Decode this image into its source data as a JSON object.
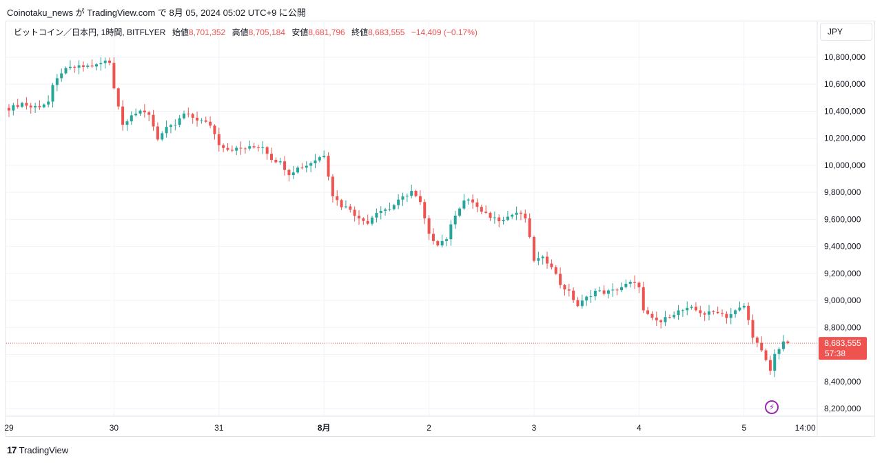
{
  "header": {
    "published_line": "Coinotaku_news が TradingView.com で 8月 05, 2024 05:02 UTC+9 に公開"
  },
  "legend": {
    "symbol": "ビットコイン／日本円, 1時間, BITFLYER",
    "open_label": "始値",
    "open_value": "8,701,352",
    "high_label": "高値",
    "high_value": "8,705,184",
    "low_label": "安値",
    "low_value": "8,681,796",
    "close_label": "終値",
    "close_value": "8,683,555",
    "change": "−14,409 (−0.17%)"
  },
  "currency_button": "JPY",
  "price_tag": {
    "price": "8,683,555",
    "countdown": "57:38"
  },
  "footer": {
    "logo_mark": "17",
    "brand": "TradingView"
  },
  "colors": {
    "up": "#26a69a",
    "down": "#ef5350",
    "grid": "#f0f3fa",
    "axis_text": "#131722",
    "accent_bolt": "#9c27b0"
  },
  "chart_data": {
    "type": "candlestick",
    "ylim": [
      8180000,
      10920000
    ],
    "y_ticks": [
      10800000,
      10600000,
      10400000,
      10200000,
      10000000,
      9800000,
      9600000,
      9400000,
      9200000,
      9000000,
      8800000,
      8600000,
      8400000,
      8200000
    ],
    "y_tick_labels": [
      "10,800,000",
      "10,600,000",
      "10,400,000",
      "10,200,000",
      "10,000,000",
      "9,800,000",
      "9,600,000",
      "9,400,000",
      "9,200,000",
      "9,000,000",
      "8,800,000",
      "8,600,000",
      "8,400,000",
      "8,200,000"
    ],
    "x_tick_labels": [
      {
        "label": "29",
        "hour": 0,
        "bold": false
      },
      {
        "label": "30",
        "hour": 24,
        "bold": false
      },
      {
        "label": "31",
        "hour": 48,
        "bold": false
      },
      {
        "label": "8月",
        "hour": 72,
        "bold": true
      },
      {
        "label": "2",
        "hour": 96,
        "bold": false
      },
      {
        "label": "3",
        "hour": 120,
        "bold": false
      },
      {
        "label": "4",
        "hour": 144,
        "bold": false
      },
      {
        "label": "5",
        "hour": 168,
        "bold": false
      },
      {
        "label": "14:00",
        "hour": 182,
        "bold": false
      }
    ],
    "last_price": 8683555,
    "close_path": [
      [
        0,
        10420000
      ],
      [
        3,
        10460000
      ],
      [
        5,
        10430000
      ],
      [
        7,
        10440000
      ],
      [
        9,
        10470000
      ],
      [
        10,
        10580000
      ],
      [
        12,
        10690000
      ],
      [
        14,
        10720000
      ],
      [
        17,
        10730000
      ],
      [
        20,
        10740000
      ],
      [
        22,
        10770000
      ],
      [
        23,
        10760000
      ],
      [
        24,
        10580000
      ],
      [
        26,
        10300000
      ],
      [
        28,
        10380000
      ],
      [
        30,
        10390000
      ],
      [
        32,
        10380000
      ],
      [
        34,
        10200000
      ],
      [
        36,
        10270000
      ],
      [
        38,
        10300000
      ],
      [
        40,
        10380000
      ],
      [
        43,
        10340000
      ],
      [
        46,
        10300000
      ],
      [
        48,
        10160000
      ],
      [
        50,
        10120000
      ],
      [
        52,
        10120000
      ],
      [
        55,
        10130000
      ],
      [
        58,
        10140000
      ],
      [
        60,
        10050000
      ],
      [
        62,
        10020000
      ],
      [
        64,
        9940000
      ],
      [
        66,
        9980000
      ],
      [
        68,
        10000000
      ],
      [
        70,
        10040000
      ],
      [
        72,
        10080000
      ],
      [
        74,
        9780000
      ],
      [
        76,
        9700000
      ],
      [
        78,
        9680000
      ],
      [
        80,
        9600000
      ],
      [
        82,
        9580000
      ],
      [
        84,
        9660000
      ],
      [
        87,
        9680000
      ],
      [
        90,
        9760000
      ],
      [
        92,
        9810000
      ],
      [
        94,
        9720000
      ],
      [
        96,
        9480000
      ],
      [
        98,
        9420000
      ],
      [
        100,
        9460000
      ],
      [
        102,
        9640000
      ],
      [
        104,
        9740000
      ],
      [
        106,
        9730000
      ],
      [
        108,
        9650000
      ],
      [
        110,
        9620000
      ],
      [
        112,
        9600000
      ],
      [
        114,
        9620000
      ],
      [
        116,
        9650000
      ],
      [
        118,
        9610000
      ],
      [
        120,
        9300000
      ],
      [
        122,
        9310000
      ],
      [
        124,
        9260000
      ],
      [
        126,
        9120000
      ],
      [
        128,
        9060000
      ],
      [
        130,
        8960000
      ],
      [
        132,
        9020000
      ],
      [
        134,
        9070000
      ],
      [
        136,
        9060000
      ],
      [
        138,
        9070000
      ],
      [
        140,
        9100000
      ],
      [
        142,
        9130000
      ],
      [
        144,
        9110000
      ],
      [
        145,
        8920000
      ],
      [
        147,
        8860000
      ],
      [
        149,
        8840000
      ],
      [
        151,
        8890000
      ],
      [
        153,
        8920000
      ],
      [
        156,
        8940000
      ],
      [
        159,
        8900000
      ],
      [
        162,
        8920000
      ],
      [
        164,
        8880000
      ],
      [
        166,
        8920000
      ],
      [
        168,
        8960000
      ],
      [
        170,
        8740000
      ],
      [
        172,
        8620000
      ],
      [
        174,
        8480000
      ],
      [
        175,
        8600000
      ],
      [
        177,
        8700000
      ],
      [
        178,
        8683555
      ]
    ]
  }
}
